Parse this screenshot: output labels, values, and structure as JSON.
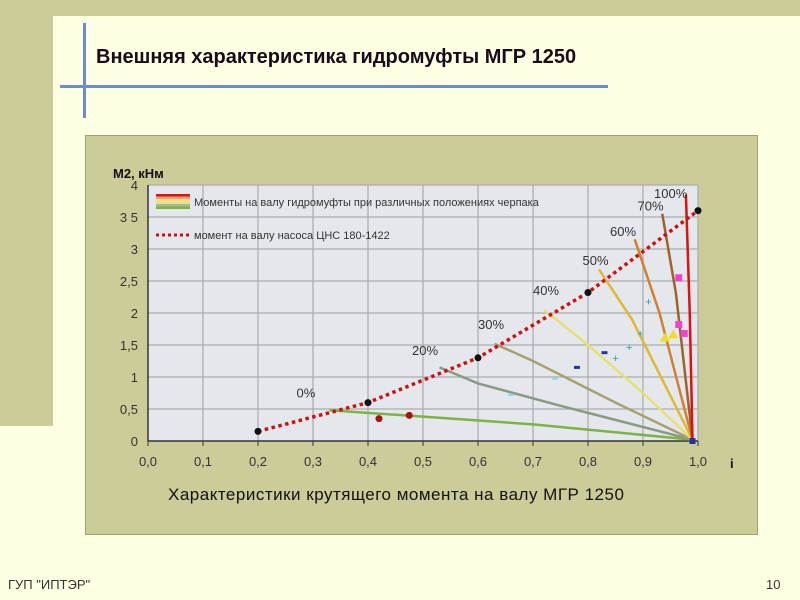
{
  "title": "Внешняя характеристика гидромуфты МГР 1250",
  "footer": "ГУП \"ИПТЭР\"",
  "page_number": "10",
  "chart_data": {
    "type": "line",
    "title": "Характеристики крутящего момента на валу МГР 1250",
    "xlabel": "i",
    "ylabel": "М2, кНм",
    "xlim": [
      0,
      1
    ],
    "ylim": [
      0,
      4
    ],
    "xticks": [
      "0,0",
      "0,1",
      "0,2",
      "0,3",
      "0,4",
      "0,5",
      "0,6",
      "0,7",
      "0,8",
      "0,9",
      "1,0"
    ],
    "yticks": [
      "0",
      "0,5",
      "1",
      "1,5",
      "2",
      "2,5",
      "3",
      "3 5",
      "4"
    ],
    "grid": true,
    "legend": {
      "placement": "top-left",
      "entries": [
        "Моменты на валу гидромуфты при различных положениях черпака",
        "момент на валу насоса ЦНС 180-1422"
      ]
    },
    "pump_curve": {
      "name": "момент на валу насоса ЦНС 180-1422",
      "color": "#CC1111",
      "points": [
        [
          0.2,
          0.15
        ],
        [
          0.4,
          0.6
        ],
        [
          0.6,
          1.3
        ],
        [
          0.8,
          2.32
        ],
        [
          1.0,
          3.6
        ]
      ]
    },
    "series": [
      {
        "name": "0%",
        "color": "#7CB342",
        "points": [
          [
            0.33,
            0.48
          ],
          [
            0.5,
            0.38
          ],
          [
            0.7,
            0.26
          ],
          [
            0.99,
            0.02
          ]
        ],
        "label_at": [
          0.27,
          0.68
        ]
      },
      {
        "name": "20%",
        "color": "#8A9A80",
        "points": [
          [
            0.53,
            1.15
          ],
          [
            0.6,
            0.9
          ],
          [
            0.75,
            0.55
          ],
          [
            0.99,
            0.02
          ]
        ],
        "label_at": [
          0.48,
          1.34
        ]
      },
      {
        "name": "30%",
        "color": "#A8A070",
        "points": [
          [
            0.63,
            1.52
          ],
          [
            0.7,
            1.25
          ],
          [
            0.85,
            0.6
          ],
          [
            0.99,
            0.02
          ]
        ],
        "label_at": [
          0.6,
          1.75
        ]
      },
      {
        "name": "40%",
        "color": "#E8E070",
        "points": [
          [
            0.72,
            2.05
          ],
          [
            0.8,
            1.5
          ],
          [
            0.9,
            0.75
          ],
          [
            0.99,
            0.02
          ]
        ],
        "label_at": [
          0.7,
          2.28
        ]
      },
      {
        "name": "50%",
        "color": "#E0B830",
        "points": [
          [
            0.82,
            2.68
          ],
          [
            0.88,
            1.9
          ],
          [
            0.99,
            0.02
          ]
        ],
        "label_at": [
          0.79,
          2.75
        ]
      },
      {
        "name": "60%",
        "color": "#D08030",
        "points": [
          [
            0.885,
            3.15
          ],
          [
            0.93,
            2.0
          ],
          [
            0.99,
            0.02
          ]
        ],
        "label_at": [
          0.84,
          3.2
        ]
      },
      {
        "name": "70%",
        "color": "#A0602A",
        "points": [
          [
            0.935,
            3.55
          ],
          [
            0.96,
            2.3
          ],
          [
            0.99,
            0.02
          ]
        ],
        "label_at": [
          0.89,
          3.6
        ]
      },
      {
        "name": "100%",
        "color": "#DD1111",
        "points": [
          [
            0.978,
            3.85
          ],
          [
            0.985,
            2.0
          ],
          [
            0.99,
            0.02
          ]
        ],
        "label_at": [
          0.92,
          3.8
        ]
      }
    ],
    "markers": [
      {
        "shape": "dot",
        "color": "#AA1111",
        "points": [
          [
            0.42,
            0.35
          ],
          [
            0.475,
            0.4
          ]
        ]
      },
      {
        "shape": "dash",
        "color": "#2233AA",
        "points": [
          [
            0.78,
            1.15
          ],
          [
            0.83,
            1.38
          ]
        ]
      },
      {
        "shape": "plus",
        "color": "#3A9A9A",
        "points": [
          [
            0.91,
            2.18
          ],
          [
            0.875,
            1.47
          ],
          [
            0.895,
            1.68
          ],
          [
            0.85,
            1.3
          ]
        ]
      },
      {
        "shape": "square",
        "color": "#EE44CC",
        "points": [
          [
            0.965,
            2.55
          ],
          [
            0.965,
            1.82
          ],
          [
            0.975,
            1.68
          ]
        ]
      },
      {
        "shape": "triangle",
        "color": "#EEDD22",
        "points": [
          [
            0.94,
            1.6
          ],
          [
            0.955,
            1.65
          ]
        ]
      },
      {
        "shape": "cyan",
        "color": "#88DDEE",
        "points": [
          [
            0.74,
            0.97
          ],
          [
            0.66,
            0.72
          ]
        ]
      }
    ]
  }
}
